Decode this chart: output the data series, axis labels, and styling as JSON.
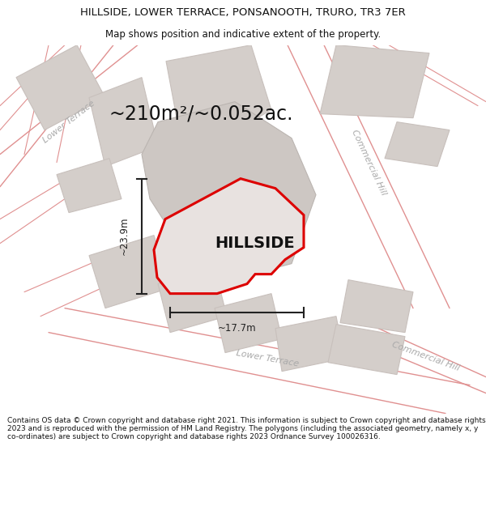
{
  "title_line1": "HILLSIDE, LOWER TERRACE, PONSANOOTH, TRURO, TR3 7ER",
  "title_line2": "Map shows position and indicative extent of the property.",
  "area_text": "~210m²/~0.052ac.",
  "dim_width": "~17.7m",
  "dim_height": "~23.9m",
  "property_label": "HILLSIDE",
  "footer_text": "Contains OS data © Crown copyright and database right 2021. This information is subject to Crown copyright and database rights 2023 and is reproduced with the permission of HM Land Registry. The polygons (including the associated geometry, namely x, y co-ordinates) are subject to Crown copyright and database rights 2023 Ordnance Survey 100026316.",
  "map_bg": "#f2eeee",
  "plot_fill": "#e8e2e0",
  "plot_outline_color": "#dd0000",
  "road_line_color": "#e09090",
  "building_fill": "#d4ceca",
  "building_edge": "#c8c0bc",
  "dim_line_color": "#222222",
  "road_label_color": "#aaaaaa",
  "title_color": "#111111",
  "footer_color": "#111111",
  "title_fontsize": 9.5,
  "subtitle_fontsize": 8.5,
  "area_fontsize": 17,
  "hillside_fontsize": 14,
  "road_label_fontsize": 8,
  "dim_fontsize": 8.5,
  "footer_fontsize": 6.5
}
